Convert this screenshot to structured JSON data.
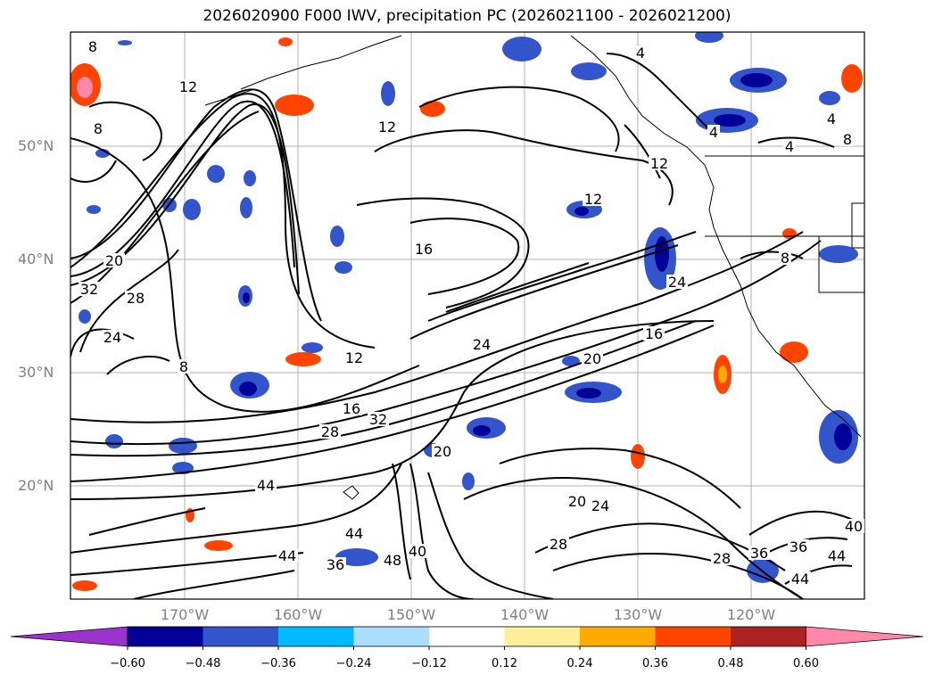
{
  "title": "2026020900 F000 IWV, precipitation PC (2026021100 - 2026021200)",
  "lat_labels": [
    {
      "text": "50°N",
      "lat": 50
    },
    {
      "text": "40°N",
      "lat": 40
    },
    {
      "text": "30°N",
      "lat": 30
    },
    {
      "text": "20°N",
      "lat": 20
    }
  ],
  "lon_labels": [
    {
      "text": "170°W",
      "lon": -170
    },
    {
      "text": "160°W",
      "lon": -160
    },
    {
      "text": "150°W",
      "lon": -150
    },
    {
      "text": "140°W",
      "lon": -140
    },
    {
      "text": "130°W",
      "lon": -130
    },
    {
      "text": "120°W",
      "lon": -120
    }
  ],
  "colorbar": {
    "ticks": [
      "−0.60",
      "−0.48",
      "−0.36",
      "−0.24",
      "−0.12",
      "0.12",
      "0.24",
      "0.36",
      "0.48",
      "0.60"
    ],
    "colors": [
      "#9933cc",
      "#000099",
      "#3355cc",
      "#00bbff",
      "#aaddff",
      "#ffffff",
      "#ffee99",
      "#ffaa00",
      "#ff4400",
      "#aa2222",
      "#ff88aa"
    ]
  },
  "contour_labels": [
    "8",
    "12",
    "12",
    "8",
    "16",
    "12",
    "20",
    "24",
    "28",
    "32",
    "24",
    "8",
    "12",
    "16",
    "20",
    "24",
    "28",
    "32",
    "16",
    "20",
    "24",
    "28",
    "36",
    "40",
    "44",
    "44",
    "48",
    "40",
    "44",
    "36",
    "28",
    "20",
    "24",
    "12",
    "4",
    "4",
    "8",
    "4",
    "8",
    "4",
    "44",
    "36",
    "40",
    "44"
  ]
}
